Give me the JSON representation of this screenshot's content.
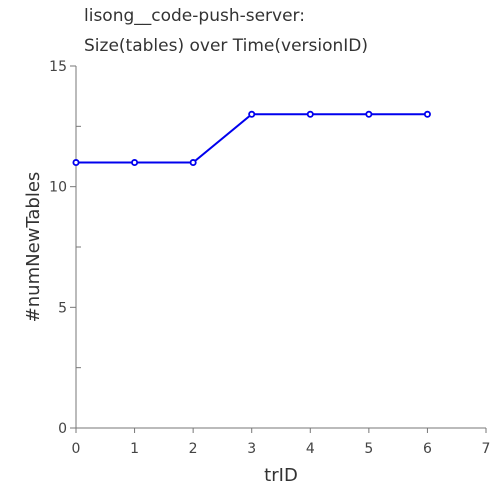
{
  "chart_data": {
    "type": "line",
    "title_lines": [
      "lisong__code-push-server:",
      "Size(tables) over Time(versionID)"
    ],
    "xlabel": "trID",
    "ylabel": "#numNewTables",
    "xlim": [
      0,
      7
    ],
    "ylim": [
      0,
      15
    ],
    "x_ticks": [
      0,
      1,
      2,
      3,
      4,
      5,
      6,
      7
    ],
    "y_ticks": [
      0,
      5,
      10,
      15
    ],
    "x_tick_labels": [
      "0",
      "1",
      "2",
      "3",
      "4",
      "5",
      "6",
      "7"
    ],
    "y_tick_labels": [
      "0",
      "5",
      "10",
      "15"
    ],
    "grid": false,
    "series": [
      {
        "color": "#0000ee",
        "x": [
          0,
          1,
          2,
          3,
          4,
          5,
          6
        ],
        "y": [
          11,
          11,
          11,
          13,
          13,
          13,
          13
        ]
      }
    ]
  }
}
